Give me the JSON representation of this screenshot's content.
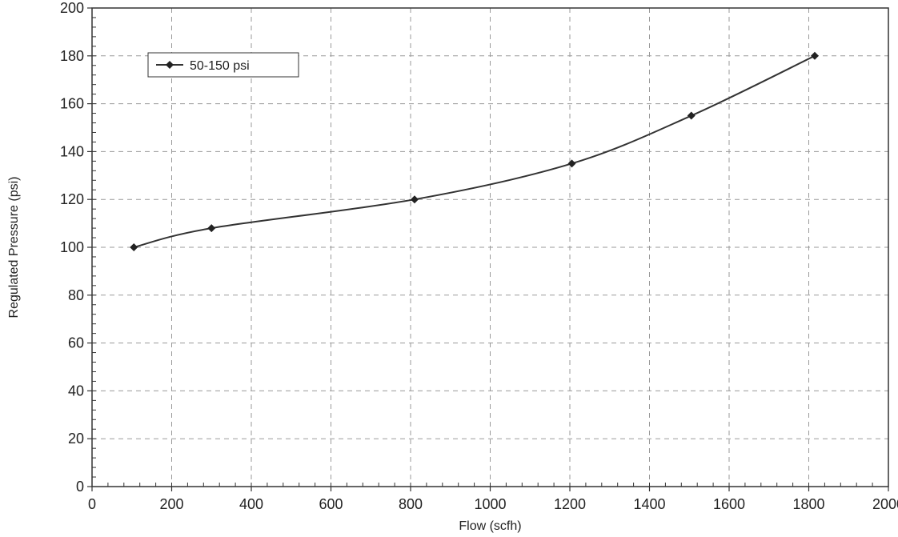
{
  "chart_data": {
    "type": "line",
    "title": "",
    "xlabel": "Flow (scfh)",
    "ylabel": "Regulated Pressure (psi)",
    "xlim": [
      0,
      2000
    ],
    "ylim": [
      0,
      200
    ],
    "x_ticks": [
      0,
      200,
      400,
      600,
      800,
      1000,
      1200,
      1400,
      1600,
      1800,
      2000
    ],
    "y_ticks": [
      0,
      20,
      40,
      60,
      80,
      100,
      120,
      140,
      160,
      180,
      200
    ],
    "grid": true,
    "legend_position": "top-left",
    "series": [
      {
        "name": "50-150 psi",
        "marker": "diamond",
        "color": "#333333",
        "x": [
          105,
          300,
          810,
          1205,
          1505,
          1815
        ],
        "y": [
          100,
          108,
          120,
          135,
          155,
          180
        ]
      }
    ]
  }
}
